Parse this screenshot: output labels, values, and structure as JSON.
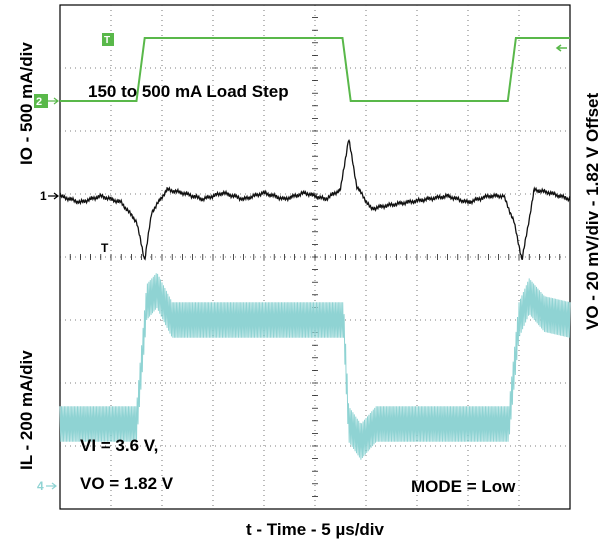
{
  "chart_data": {
    "type": "line",
    "title": "150 to 500 mA Load Step",
    "xlabel": "t - Time - 5 µs/div",
    "ylabel_left_top": "IO - 500 mA/div",
    "ylabel_left_bottom": "IL - 200 mA/div",
    "ylabel_right": "VO - 20 mV/div - 1.82 V Offset",
    "grid": true,
    "grid_divisions": {
      "x": 10,
      "y": 8
    },
    "time_per_div_us": 5,
    "annotations": {
      "conditions_vi": "VI = 3.6 V,",
      "conditions_vo": "VO = 1.82 V",
      "mode": "MODE = Low"
    },
    "channel_markers": {
      "ch1": "1",
      "ch2": "2",
      "ch4": "4",
      "trigger_top": "T",
      "trigger_mid": "T"
    },
    "series": [
      {
        "name": "IO",
        "channel": 2,
        "color": "#59b84a",
        "unit": "mA",
        "x_us": [
          0,
          7.5,
          8.3,
          27.7,
          28.5,
          43.9,
          44.7,
          50
        ],
        "values": [
          150,
          150,
          500,
          500,
          150,
          150,
          500,
          500
        ]
      },
      {
        "name": "VO",
        "channel": 1,
        "color": "#111111",
        "unit": "mV_deviation",
        "x_us": [
          0,
          2,
          4,
          6,
          7.5,
          8.3,
          9,
          10.5,
          12,
          14,
          16,
          18,
          20,
          22,
          24,
          26,
          27.5,
          28.3,
          29.1,
          30.5,
          32,
          34,
          36,
          38,
          40,
          42,
          43.5,
          44.5,
          45.3,
          46.5,
          48,
          50
        ],
        "values": [
          0,
          -2,
          0,
          -2,
          -8,
          -20,
          -5,
          2,
          1,
          -1,
          1,
          -1,
          1,
          -1,
          1,
          -1,
          2,
          18,
          3,
          -4,
          -3,
          -2,
          -1,
          0,
          -2,
          0,
          0,
          -8,
          -20,
          2,
          1,
          -1
        ]
      },
      {
        "name": "IL",
        "channel": 4,
        "color": "#8fd3d3",
        "unit": "mA",
        "ripple_pp_mA": 120,
        "x_us": [
          0,
          7.5,
          8.5,
          9.5,
          11,
          13,
          27.8,
          28.3,
          29.5,
          31,
          44,
          45,
          46,
          47.5,
          50
        ],
        "values": [
          150,
          150,
          560,
          600,
          500,
          500,
          500,
          150,
          90,
          150,
          150,
          500,
          580,
          520,
          500
        ]
      }
    ]
  }
}
